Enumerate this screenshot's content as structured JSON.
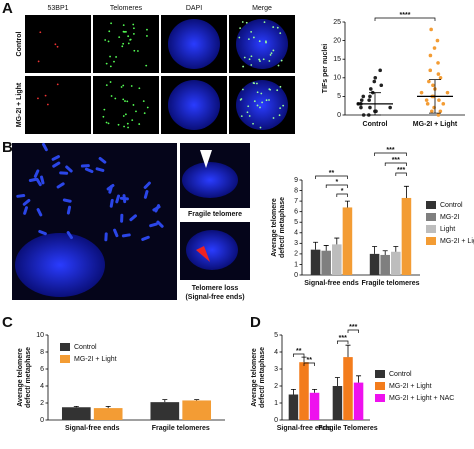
{
  "panels": [
    "A",
    "B",
    "C",
    "D"
  ],
  "images": {
    "columns": [
      "53BP1",
      "Telomeres",
      "DAPI",
      "Merge"
    ],
    "rows": [
      "Control",
      "MG-2I + Light"
    ],
    "fragile": "Fragile telomere",
    "loss": [
      "Telomere loss",
      "(Signal-free ends)"
    ]
  },
  "chart_data": [
    {
      "type": "scatter",
      "ylabel": "TIFs per nuclei",
      "categories": [
        "Control",
        "MG-2I + Light"
      ],
      "colors": [
        "#222222",
        "#f39c34"
      ],
      "groups": [
        [
          0,
          0,
          1,
          1,
          1,
          2,
          2,
          2,
          3,
          3,
          3,
          4,
          4,
          5,
          5,
          6,
          7,
          8,
          9,
          10,
          12
        ],
        [
          0,
          1,
          1,
          2,
          3,
          3,
          4,
          4,
          5,
          5,
          6,
          6,
          7,
          8,
          9,
          10,
          11,
          12,
          14,
          16,
          18,
          20,
          23
        ]
      ],
      "means": [
        3,
        5
      ],
      "sd": [
        3,
        4.5
      ],
      "ylim": [
        0,
        25
      ],
      "yticks": [
        0,
        5,
        10,
        15,
        20,
        25
      ],
      "significance": [
        "****"
      ]
    },
    {
      "type": "bar",
      "ylabel": [
        "Average telomere",
        "defect/ metaphase"
      ],
      "categories": [
        "Signal-free ends",
        "Fragile telomeres"
      ],
      "series": [
        {
          "name": "Control",
          "color": "#333333",
          "values": [
            2.4,
            2.0
          ],
          "errors": [
            0.7,
            0.7
          ]
        },
        {
          "name": "MG-2I",
          "color": "#7f7f7f",
          "values": [
            2.3,
            1.9
          ],
          "errors": [
            0.5,
            0.4
          ]
        },
        {
          "name": "Light",
          "color": "#bdbdbd",
          "values": [
            2.9,
            2.2
          ],
          "errors": [
            0.6,
            0.5
          ]
        },
        {
          "name": "MG-2I + Light",
          "color": "#f39c34",
          "values": [
            6.4,
            7.3
          ],
          "errors": [
            0.6,
            1.1
          ]
        }
      ],
      "ylim": [
        0,
        9
      ],
      "yticks": [
        0,
        1,
        2,
        3,
        4,
        5,
        6,
        7,
        8,
        9
      ],
      "legend": "right",
      "significance": [
        "**",
        "*",
        "*",
        "***",
        "***",
        "***"
      ]
    },
    {
      "type": "bar",
      "ylabel": [
        "Average telomere",
        "defect/ metaphase"
      ],
      "categories": [
        "Signal-free ends",
        "Fragile telomeres"
      ],
      "series": [
        {
          "name": "Control",
          "color": "#333333",
          "values": [
            1.5,
            2.1
          ],
          "errors": [
            0.1,
            0.3
          ]
        },
        {
          "name": "MG-2I + Light",
          "color": "#f39c34",
          "values": [
            1.4,
            2.3
          ],
          "errors": [
            0.2,
            0.1
          ]
        }
      ],
      "ylim": [
        0,
        10
      ],
      "yticks": [
        0,
        2,
        4,
        6,
        8,
        10
      ],
      "legend": "upper left",
      "significance": []
    },
    {
      "type": "bar",
      "ylabel": [
        "Average telomere",
        "defect/ metaphase"
      ],
      "categories": [
        "Signal-free ends",
        "Fragile Telomeres"
      ],
      "series": [
        {
          "name": "Control",
          "color": "#333333",
          "values": [
            1.5,
            2.0
          ],
          "errors": [
            0.3,
            0.5
          ]
        },
        {
          "name": "MG-2I + Light",
          "color": "#f37c1c",
          "values": [
            3.4,
            3.7
          ],
          "errors": [
            0.3,
            0.7
          ]
        },
        {
          "name": "MG-2I + Light + NAC",
          "color": "#ee11ee",
          "values": [
            1.6,
            2.2
          ],
          "errors": [
            0.2,
            0.4
          ]
        }
      ],
      "ylim": [
        0,
        5
      ],
      "yticks": [
        0,
        1,
        2,
        3,
        4,
        5
      ],
      "legend": "lower right",
      "significance": [
        "**",
        "**",
        "***",
        "***"
      ]
    }
  ]
}
